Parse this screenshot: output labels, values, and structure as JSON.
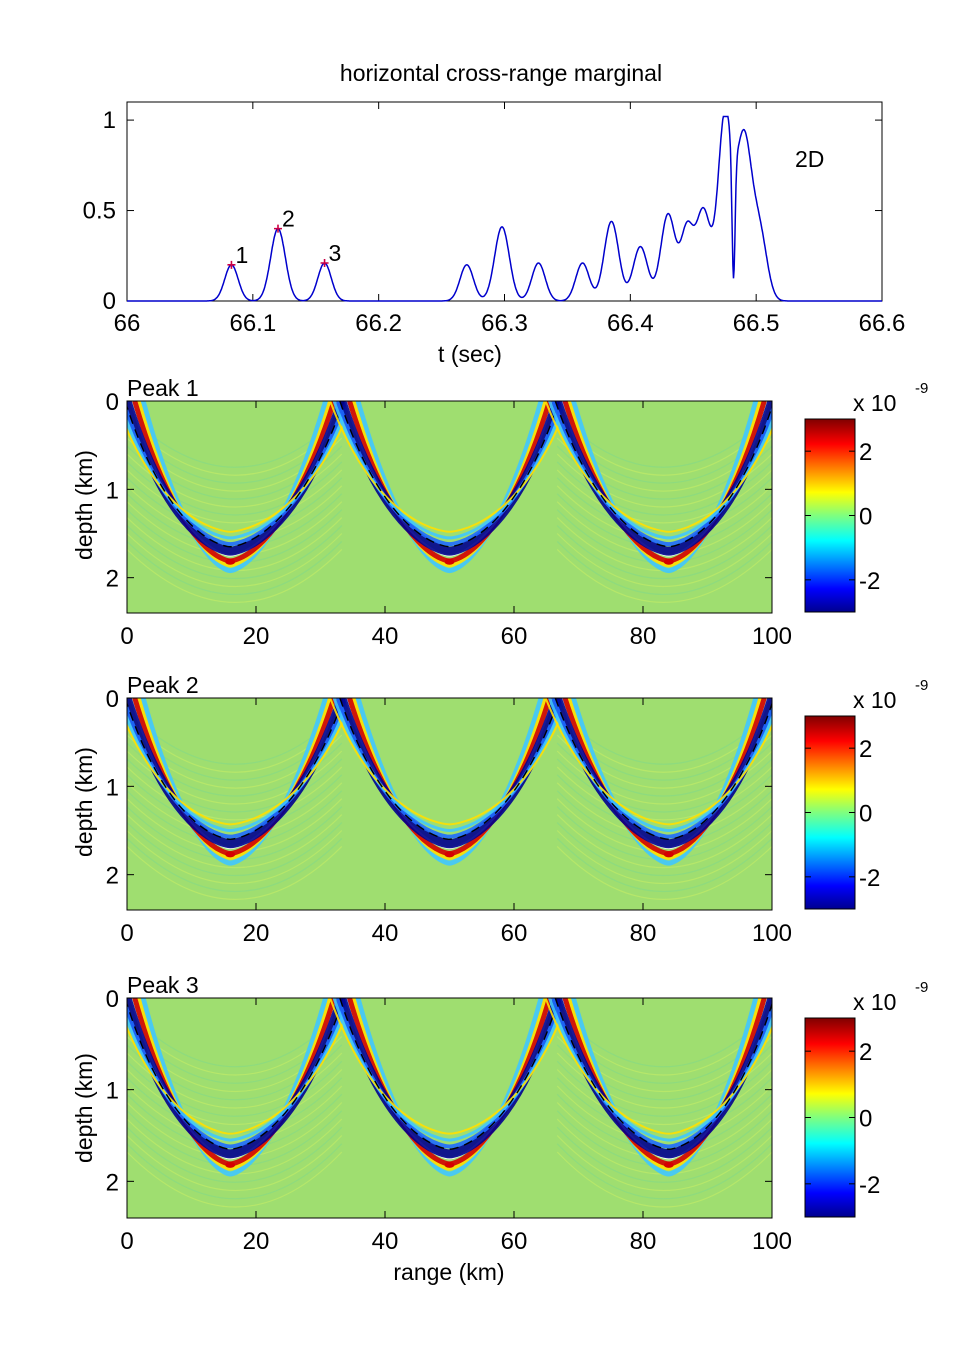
{
  "chart_data": [
    {
      "type": "line",
      "title": "horizontal cross-range marginal",
      "xlabel": "t (sec)",
      "ylabel": "",
      "xlim": [
        66.0,
        66.6
      ],
      "ylim": [
        0,
        1.1
      ],
      "xticks": [
        "66",
        "66.1",
        "66.2",
        "66.3",
        "66.4",
        "66.5",
        "66.6"
      ],
      "yticks": [
        "0",
        "0.5",
        "1"
      ],
      "annotation": "2D",
      "series_color": "#0000cc",
      "peak_marker_color": "#cc0044",
      "peaks": [
        {
          "label": "1",
          "t": 66.083,
          "value": 0.2
        },
        {
          "label": "2",
          "t": 66.12,
          "value": 0.4
        },
        {
          "label": "3",
          "t": 66.157,
          "value": 0.21
        }
      ],
      "components": [
        {
          "t": 66.083,
          "amp": 0.2,
          "width": 0.0055
        },
        {
          "t": 66.12,
          "amp": 0.4,
          "width": 0.006
        },
        {
          "t": 66.157,
          "amp": 0.21,
          "width": 0.0055
        },
        {
          "t": 66.27,
          "amp": 0.2,
          "width": 0.0055
        },
        {
          "t": 66.298,
          "amp": 0.41,
          "width": 0.006
        },
        {
          "t": 66.327,
          "amp": 0.21,
          "width": 0.0055
        },
        {
          "t": 66.362,
          "amp": 0.21,
          "width": 0.0055
        },
        {
          "t": 66.385,
          "amp": 0.44,
          "width": 0.006
        },
        {
          "t": 66.408,
          "amp": 0.3,
          "width": 0.006
        },
        {
          "t": 66.43,
          "amp": 0.48,
          "width": 0.006
        },
        {
          "t": 66.445,
          "amp": 0.38,
          "width": 0.005
        },
        {
          "t": 66.458,
          "amp": 0.5,
          "width": 0.006
        },
        {
          "t": 66.475,
          "amp": 1.0,
          "width": 0.0055
        },
        {
          "t": 66.49,
          "amp": 0.9,
          "width": 0.0065
        },
        {
          "t": 66.503,
          "amp": 0.35,
          "width": 0.006
        }
      ]
    },
    {
      "type": "heatmap",
      "title": "Peak 1",
      "xlabel": "",
      "ylabel": "depth (km)",
      "xlim": [
        0,
        100
      ],
      "ylim": [
        2.4,
        0
      ],
      "xticks": [
        "0",
        "20",
        "40",
        "60",
        "80",
        "100"
      ],
      "yticks": [
        "0",
        "1",
        "2"
      ],
      "colorbar": {
        "ticks": [
          "2",
          "0",
          "-2"
        ],
        "exponent": "x 10",
        "exponent_power": "-9",
        "range": [
          -3,
          3
        ]
      },
      "arch_vertices": [
        0,
        33.3,
        66.7,
        100
      ],
      "arch_bottoms_km": [
        16,
        50,
        84
      ],
      "bottom_depth_km": 1.7
    },
    {
      "type": "heatmap",
      "title": "Peak 2",
      "xlabel": "",
      "ylabel": "depth (km)",
      "xlim": [
        0,
        100
      ],
      "ylim": [
        2.4,
        0
      ],
      "xticks": [
        "0",
        "20",
        "40",
        "60",
        "80",
        "100"
      ],
      "yticks": [
        "0",
        "1",
        "2"
      ],
      "colorbar": {
        "ticks": [
          "2",
          "0",
          "-2"
        ],
        "exponent": "x 10",
        "exponent_power": "-9",
        "range": [
          -3,
          3
        ]
      },
      "arch_vertices": [
        0,
        33.3,
        66.7,
        100
      ],
      "arch_bottoms_km": [
        16,
        50,
        84
      ],
      "bottom_depth_km": 1.65
    },
    {
      "type": "heatmap",
      "title": "Peak 3",
      "xlabel": "range (km)",
      "ylabel": "depth (km)",
      "xlim": [
        0,
        100
      ],
      "ylim": [
        2.4,
        0
      ],
      "xticks": [
        "0",
        "20",
        "40",
        "60",
        "80",
        "100"
      ],
      "yticks": [
        "0",
        "1",
        "2"
      ],
      "colorbar": {
        "ticks": [
          "2",
          "0",
          "-2"
        ],
        "exponent": "x 10",
        "exponent_power": "-9",
        "range": [
          -3,
          3
        ]
      },
      "arch_vertices": [
        0,
        33.3,
        66.7,
        100
      ],
      "arch_bottoms_km": [
        16,
        50,
        84
      ],
      "bottom_depth_km": 1.7
    }
  ],
  "colors": {
    "background": "#9fde70",
    "positive": "#d40000",
    "negative": "#00008f",
    "dashed": "#000000"
  }
}
